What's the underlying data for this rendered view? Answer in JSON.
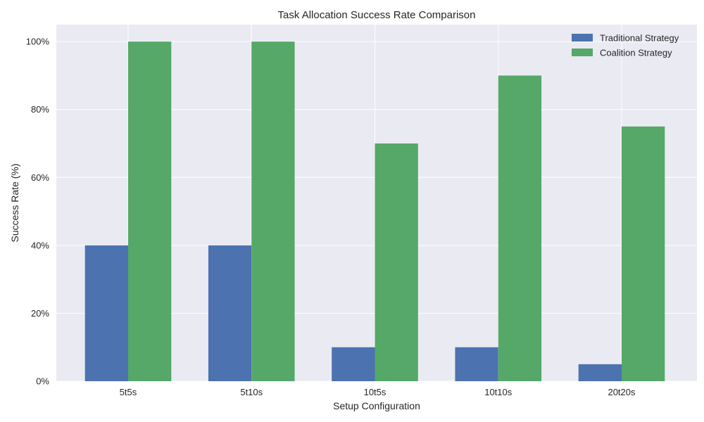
{
  "chart_data": {
    "type": "bar",
    "title": "Task Allocation Success Rate Comparison",
    "xlabel": "Setup Configuration",
    "ylabel": "Success Rate (%)",
    "categories": [
      "5t5s",
      "5t10s",
      "10t5s",
      "10t10s",
      "20t20s"
    ],
    "series": [
      {
        "name": "Traditional Strategy",
        "values": [
          40,
          40,
          10,
          10,
          5
        ],
        "color": "#4c72b0"
      },
      {
        "name": "Coalition Strategy",
        "values": [
          100,
          100,
          70,
          90,
          75
        ],
        "color": "#55a868"
      }
    ],
    "ylim": [
      0,
      105
    ],
    "yticks": [
      0,
      20,
      40,
      60,
      80,
      100
    ],
    "ytick_labels": [
      "0%",
      "20%",
      "40%",
      "60%",
      "80%",
      "100%"
    ],
    "grid": true,
    "legend_position": "top-right",
    "colors": {
      "plot_background": "#eaeaf2",
      "grid": "#ffffff"
    }
  }
}
